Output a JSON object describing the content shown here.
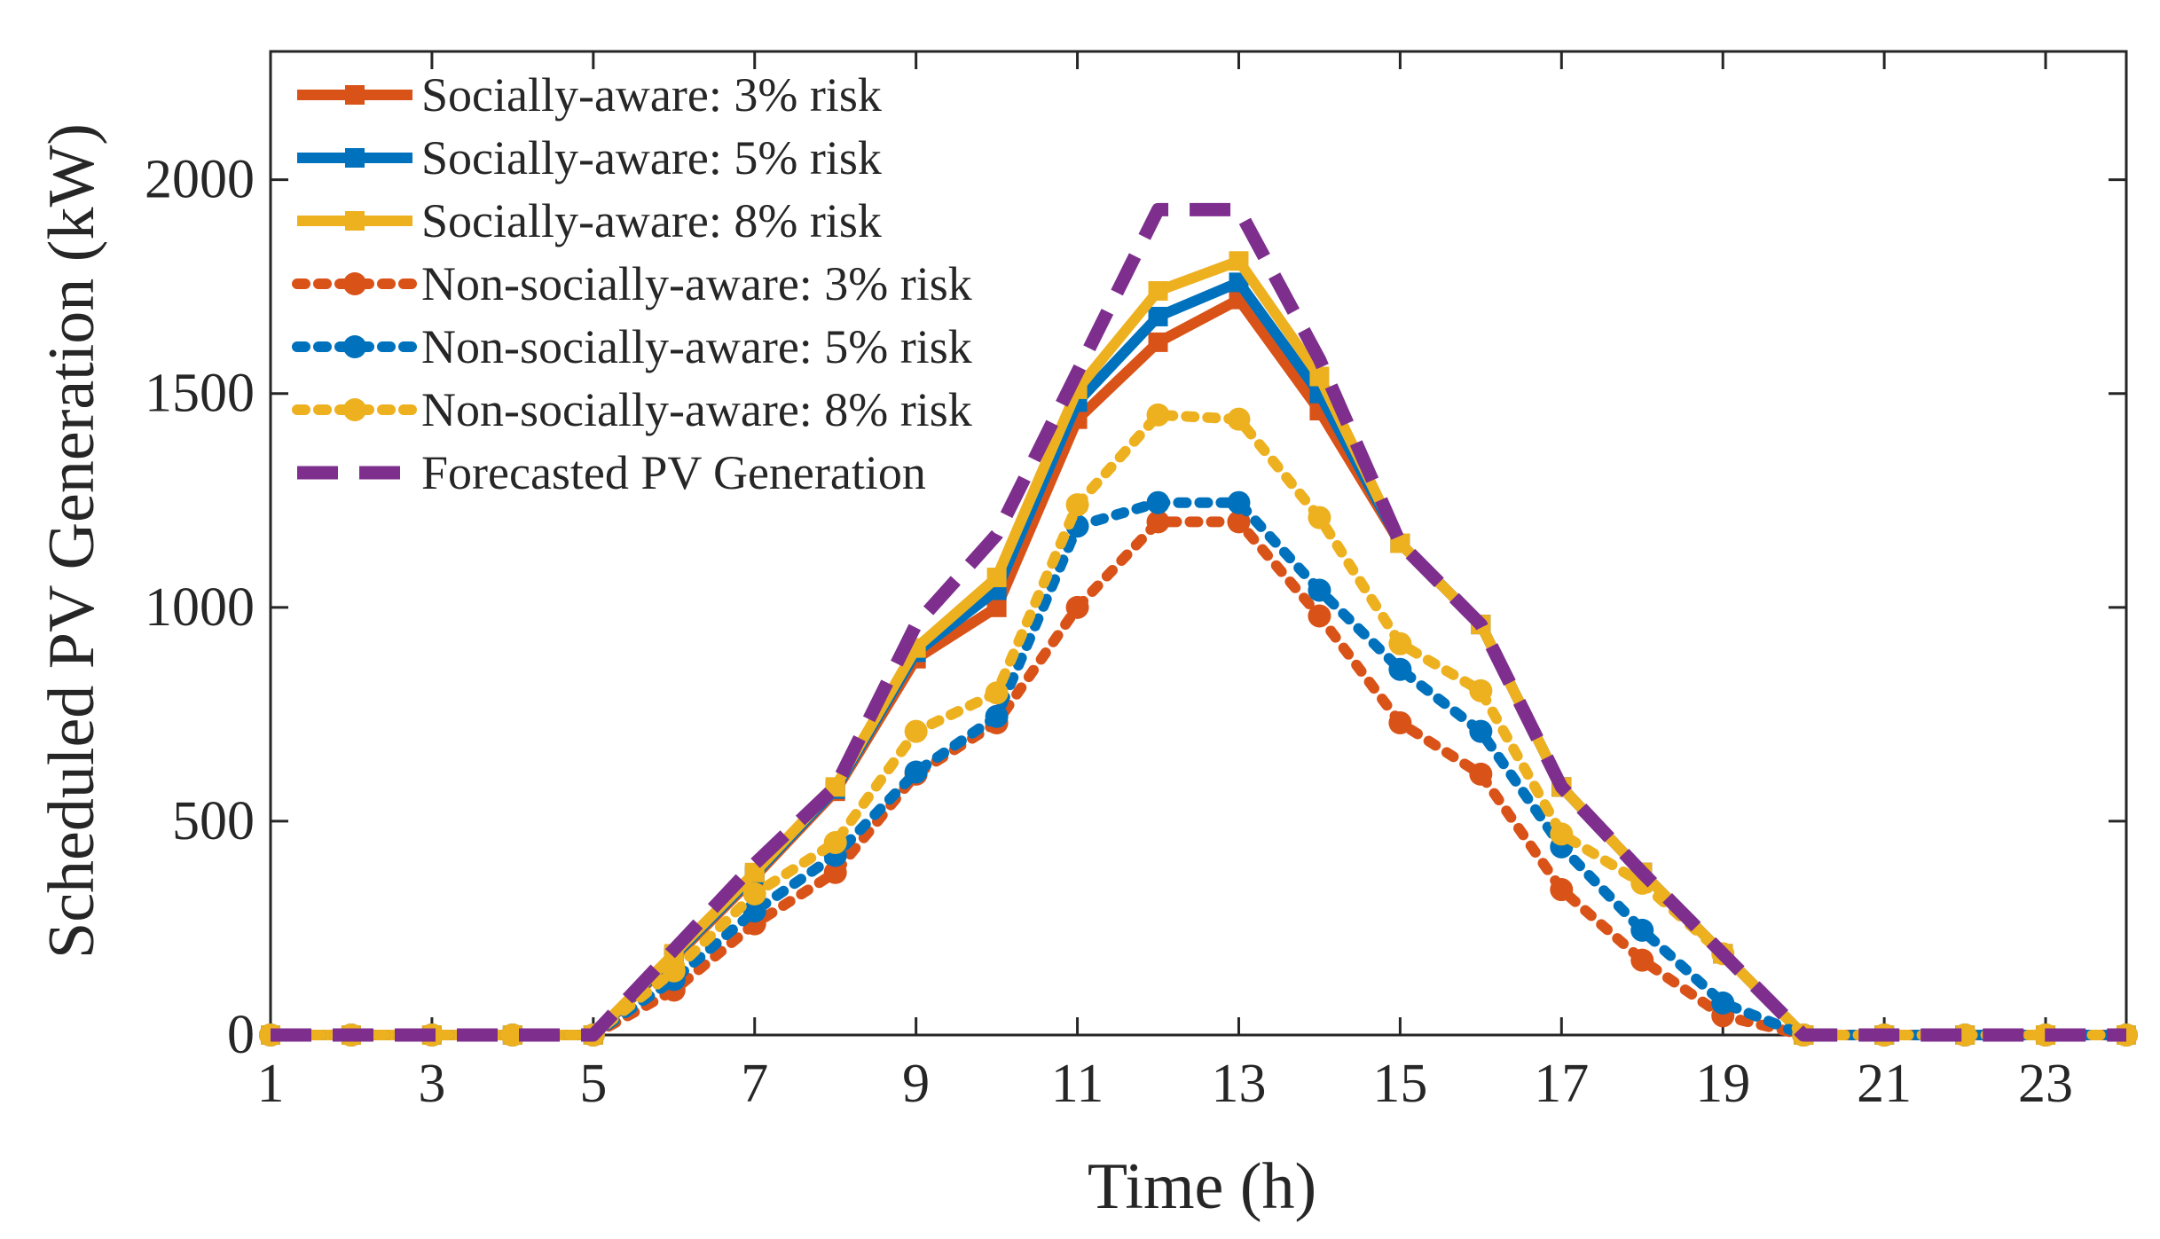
{
  "chart_data": {
    "type": "line",
    "title": "",
    "xlabel": "Time (h)",
    "ylabel": "Scheduled PV Generation (kW)",
    "xlim": [
      1,
      24
    ],
    "ylim": [
      0,
      2300
    ],
    "xticks": [
      1,
      3,
      5,
      7,
      9,
      11,
      13,
      15,
      17,
      19,
      21,
      23
    ],
    "yticks": [
      0,
      500,
      1000,
      1500,
      2000
    ],
    "grid": false,
    "legend_position": "top-left",
    "x": [
      1,
      2,
      3,
      4,
      5,
      6,
      7,
      8,
      9,
      10,
      11,
      12,
      13,
      14,
      15,
      16,
      17,
      18,
      19,
      20,
      21,
      22,
      23,
      24
    ],
    "series": [
      {
        "name": "Socially-aware: 3% risk",
        "color": "#D95319",
        "style": "solid",
        "marker": "square",
        "values": [
          0,
          0,
          0,
          0,
          0,
          180,
          370,
          570,
          880,
          1000,
          1440,
          1620,
          1720,
          1460,
          1150,
          960,
          580,
          380,
          190,
          0,
          0,
          0,
          0,
          0
        ]
      },
      {
        "name": "Socially-aware: 5% risk",
        "color": "#0072BD",
        "style": "solid",
        "marker": "square",
        "values": [
          0,
          0,
          0,
          0,
          0,
          185,
          375,
          575,
          895,
          1040,
          1480,
          1680,
          1760,
          1500,
          1150,
          960,
          580,
          380,
          190,
          0,
          0,
          0,
          0,
          0
        ]
      },
      {
        "name": "Socially-aware: 8% risk",
        "color": "#EDB120",
        "style": "solid",
        "marker": "square",
        "values": [
          0,
          0,
          0,
          0,
          0,
          190,
          380,
          580,
          905,
          1070,
          1510,
          1740,
          1810,
          1540,
          1150,
          960,
          580,
          380,
          190,
          0,
          0,
          0,
          0,
          0
        ]
      },
      {
        "name": "Non-socially-aware: 3% risk",
        "color": "#D95319",
        "style": "dotted",
        "marker": "circle",
        "values": [
          0,
          0,
          0,
          0,
          0,
          105,
          260,
          380,
          610,
          730,
          1000,
          1200,
          1200,
          980,
          730,
          610,
          340,
          175,
          45,
          0,
          0,
          0,
          0,
          0
        ]
      },
      {
        "name": "Non-socially-aware: 5% risk",
        "color": "#0072BD",
        "style": "dotted",
        "marker": "circle",
        "values": [
          0,
          0,
          0,
          0,
          0,
          130,
          290,
          420,
          615,
          745,
          1190,
          1245,
          1245,
          1040,
          855,
          710,
          440,
          245,
          75,
          0,
          0,
          0,
          0,
          0
        ]
      },
      {
        "name": "Non-socially-aware: 8% risk",
        "color": "#EDB120",
        "style": "dotted",
        "marker": "circle",
        "values": [
          0,
          0,
          0,
          0,
          0,
          150,
          330,
          450,
          710,
          800,
          1240,
          1450,
          1440,
          1210,
          915,
          805,
          470,
          355,
          190,
          0,
          0,
          0,
          0,
          0
        ]
      },
      {
        "name": "Forecasted PV Generation",
        "color": "#7E2F8E",
        "style": "dashed",
        "marker": "none",
        "values": [
          0,
          0,
          0,
          0,
          0,
          200,
          400,
          580,
          960,
          1170,
          1550,
          1930,
          1930,
          1580,
          1150,
          960,
          580,
          380,
          190,
          0,
          0,
          0,
          0,
          0
        ]
      }
    ]
  }
}
